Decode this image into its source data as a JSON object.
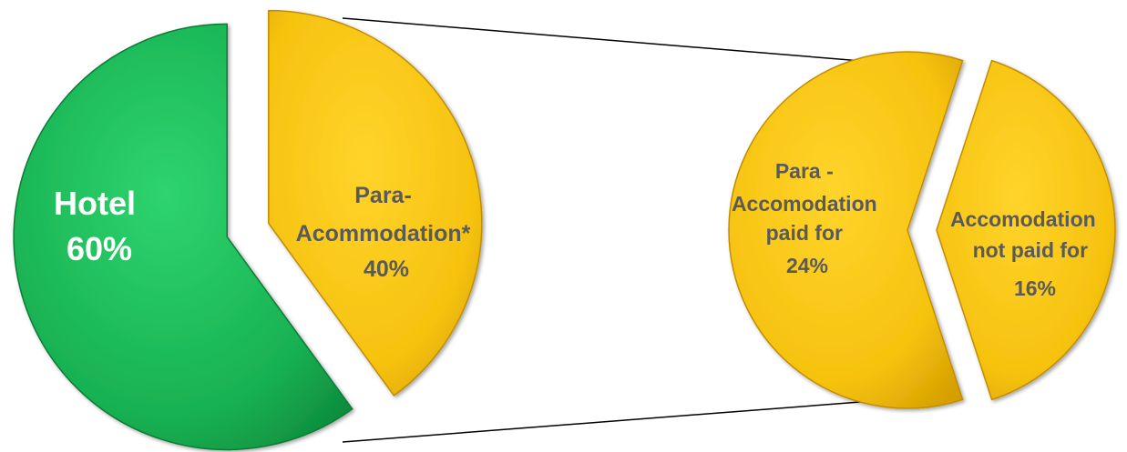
{
  "chart_data": {
    "type": "pie",
    "title": "",
    "pies": [
      {
        "slices": [
          {
            "label_lines": [
              "Hotel",
              "60%"
            ],
            "value": 60,
            "color": "#1fb85a"
          },
          {
            "label_lines": [
              "Para-",
              "Acommodation*",
              "40%"
            ],
            "value": 40,
            "color": "#f6c41a"
          }
        ]
      },
      {
        "slices": [
          {
            "label_lines": [
              "Para -",
              "Accomodation",
              "paid for",
              "24%"
            ],
            "value": 24,
            "color": "#f6c41a"
          },
          {
            "label_lines": [
              "Accomodation",
              "not paid for",
              "16%"
            ],
            "value": 16,
            "color": "#f6c41a"
          }
        ]
      }
    ],
    "connector": "Para-Acommodation* 40% expanded into breakdown"
  }
}
